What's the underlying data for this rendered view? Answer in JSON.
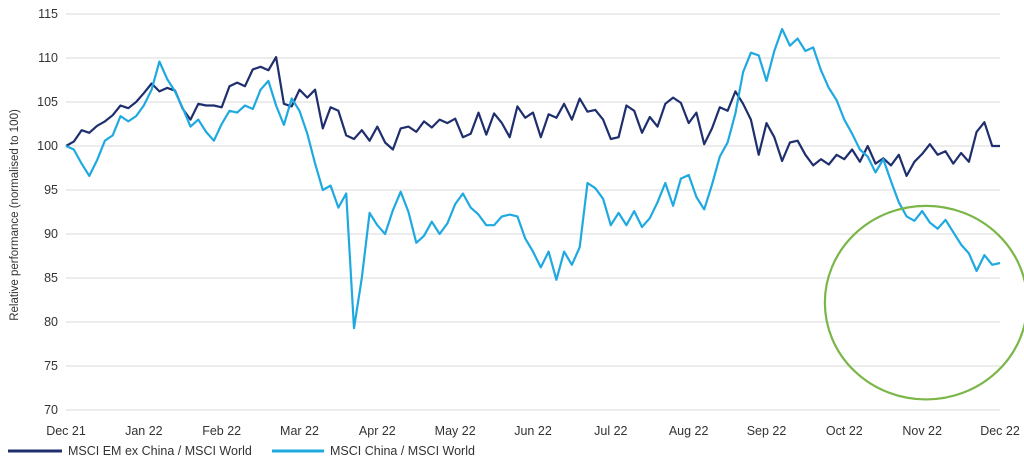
{
  "chart_data": {
    "type": "line",
    "title": "",
    "xlabel": "",
    "ylabel": "Relative performance (normalised to 100)",
    "ylim": [
      70,
      115
    ],
    "yticks": [
      70,
      75,
      80,
      85,
      90,
      95,
      100,
      105,
      110,
      115
    ],
    "xticks": [
      "Dec 21",
      "Jan 22",
      "Feb 22",
      "Mar 22",
      "Apr 22",
      "May 22",
      "Jun 22",
      "Jul 22",
      "Aug 22",
      "Sep 22",
      "Oct 22",
      "Nov 22",
      "Dec 22"
    ],
    "grid": "horizontal",
    "legend_position": "bottom-left",
    "highlight": {
      "shape": "ellipse",
      "color": "#7ab648",
      "month_center": 11.05,
      "value_center": 82.2,
      "month_radius": 1.3,
      "value_radius": 11.0
    },
    "series": [
      {
        "name": "MSCI EM ex China  / MSCI World",
        "color": "#1f2f6e",
        "points": [
          [
            0.0,
            100.0
          ],
          [
            0.1,
            100.5
          ],
          [
            0.2,
            101.8
          ],
          [
            0.3,
            101.5
          ],
          [
            0.4,
            102.3
          ],
          [
            0.5,
            102.8
          ],
          [
            0.6,
            103.5
          ],
          [
            0.7,
            104.6
          ],
          [
            0.8,
            104.3
          ],
          [
            0.9,
            105.0
          ],
          [
            1.0,
            106.0
          ],
          [
            1.1,
            107.1
          ],
          [
            1.2,
            106.2
          ],
          [
            1.3,
            106.6
          ],
          [
            1.4,
            106.3
          ],
          [
            1.5,
            104.2
          ],
          [
            1.6,
            103.0
          ],
          [
            1.7,
            104.8
          ],
          [
            1.8,
            104.6
          ],
          [
            1.9,
            104.6
          ],
          [
            2.0,
            104.4
          ],
          [
            2.1,
            106.8
          ],
          [
            2.2,
            107.2
          ],
          [
            2.3,
            106.8
          ],
          [
            2.4,
            108.7
          ],
          [
            2.5,
            109.0
          ],
          [
            2.6,
            108.6
          ],
          [
            2.7,
            110.1
          ],
          [
            2.8,
            104.8
          ],
          [
            2.9,
            104.5
          ],
          [
            3.0,
            106.4
          ],
          [
            3.1,
            105.5
          ],
          [
            3.2,
            106.4
          ],
          [
            3.3,
            102.0
          ],
          [
            3.4,
            104.4
          ],
          [
            3.5,
            104.0
          ],
          [
            3.6,
            101.2
          ],
          [
            3.7,
            100.8
          ],
          [
            3.8,
            101.8
          ],
          [
            3.9,
            100.6
          ],
          [
            4.0,
            102.2
          ],
          [
            4.1,
            100.4
          ],
          [
            4.2,
            99.6
          ],
          [
            4.3,
            102.0
          ],
          [
            4.4,
            102.2
          ],
          [
            4.5,
            101.6
          ],
          [
            4.6,
            102.8
          ],
          [
            4.7,
            102.1
          ],
          [
            4.8,
            103.0
          ],
          [
            4.9,
            102.6
          ],
          [
            5.0,
            103.1
          ],
          [
            5.1,
            101.0
          ],
          [
            5.2,
            101.4
          ],
          [
            5.3,
            103.8
          ],
          [
            5.4,
            101.3
          ],
          [
            5.5,
            103.7
          ],
          [
            5.6,
            102.6
          ],
          [
            5.7,
            101.0
          ],
          [
            5.8,
            104.5
          ],
          [
            5.9,
            103.2
          ],
          [
            6.0,
            103.8
          ],
          [
            6.1,
            101.0
          ],
          [
            6.2,
            103.6
          ],
          [
            6.3,
            103.2
          ],
          [
            6.4,
            104.8
          ],
          [
            6.5,
            103.0
          ],
          [
            6.6,
            105.4
          ],
          [
            6.7,
            103.9
          ],
          [
            6.8,
            104.1
          ],
          [
            6.9,
            103.0
          ],
          [
            7.0,
            100.8
          ],
          [
            7.1,
            101.0
          ],
          [
            7.2,
            104.6
          ],
          [
            7.3,
            104.0
          ],
          [
            7.4,
            101.5
          ],
          [
            7.5,
            103.3
          ],
          [
            7.6,
            102.2
          ],
          [
            7.7,
            104.8
          ],
          [
            7.8,
            105.5
          ],
          [
            7.9,
            104.9
          ],
          [
            8.0,
            102.6
          ],
          [
            8.1,
            103.8
          ],
          [
            8.2,
            100.2
          ],
          [
            8.3,
            102.0
          ],
          [
            8.4,
            104.4
          ],
          [
            8.5,
            104.0
          ],
          [
            8.6,
            106.2
          ],
          [
            8.7,
            104.8
          ],
          [
            8.8,
            103.0
          ],
          [
            8.9,
            99.0
          ],
          [
            9.0,
            102.6
          ],
          [
            9.1,
            101.0
          ],
          [
            9.2,
            98.3
          ],
          [
            9.3,
            100.4
          ],
          [
            9.4,
            100.6
          ],
          [
            9.5,
            99.0
          ],
          [
            9.6,
            97.8
          ],
          [
            9.7,
            98.5
          ],
          [
            9.8,
            97.9
          ],
          [
            9.9,
            99.0
          ],
          [
            10.0,
            98.5
          ],
          [
            10.1,
            99.6
          ],
          [
            10.2,
            98.2
          ],
          [
            10.3,
            100.0
          ],
          [
            10.4,
            98.0
          ],
          [
            10.5,
            98.6
          ],
          [
            10.6,
            97.8
          ],
          [
            10.7,
            99.0
          ],
          [
            10.8,
            96.6
          ],
          [
            10.9,
            98.2
          ],
          [
            11.0,
            99.1
          ],
          [
            11.1,
            100.2
          ],
          [
            11.2,
            99.0
          ],
          [
            11.3,
            99.4
          ],
          [
            11.4,
            98.0
          ],
          [
            11.5,
            99.2
          ],
          [
            11.6,
            98.2
          ],
          [
            11.7,
            101.6
          ],
          [
            11.8,
            102.7
          ],
          [
            11.9,
            100.0
          ],
          [
            12.0,
            100.0
          ]
        ]
      },
      {
        "name": "MSCI China / MSCI World",
        "color": "#1fa9e1",
        "points": [
          [
            0.0,
            100.0
          ],
          [
            0.1,
            99.6
          ],
          [
            0.2,
            98.0
          ],
          [
            0.3,
            96.6
          ],
          [
            0.4,
            98.4
          ],
          [
            0.5,
            100.6
          ],
          [
            0.6,
            101.2
          ],
          [
            0.7,
            103.4
          ],
          [
            0.8,
            102.8
          ],
          [
            0.9,
            103.4
          ],
          [
            1.0,
            104.6
          ],
          [
            1.1,
            106.4
          ],
          [
            1.2,
            109.6
          ],
          [
            1.3,
            107.6
          ],
          [
            1.4,
            106.2
          ],
          [
            1.5,
            104.3
          ],
          [
            1.6,
            102.2
          ],
          [
            1.7,
            103.0
          ],
          [
            1.8,
            101.6
          ],
          [
            1.9,
            100.6
          ],
          [
            2.0,
            102.5
          ],
          [
            2.1,
            104.0
          ],
          [
            2.2,
            103.8
          ],
          [
            2.3,
            104.6
          ],
          [
            2.4,
            104.2
          ],
          [
            2.5,
            106.4
          ],
          [
            2.6,
            107.4
          ],
          [
            2.7,
            104.6
          ],
          [
            2.8,
            102.4
          ],
          [
            2.9,
            105.4
          ],
          [
            3.0,
            104.0
          ],
          [
            3.1,
            101.4
          ],
          [
            3.2,
            98.0
          ],
          [
            3.3,
            95.0
          ],
          [
            3.4,
            95.5
          ],
          [
            3.5,
            93.0
          ],
          [
            3.6,
            94.6
          ],
          [
            3.7,
            79.3
          ],
          [
            3.8,
            85.0
          ],
          [
            3.9,
            92.4
          ],
          [
            4.0,
            91.0
          ],
          [
            4.1,
            90.0
          ],
          [
            4.2,
            92.7
          ],
          [
            4.3,
            94.8
          ],
          [
            4.4,
            92.5
          ],
          [
            4.5,
            89.0
          ],
          [
            4.6,
            89.8
          ],
          [
            4.7,
            91.4
          ],
          [
            4.8,
            90.0
          ],
          [
            4.9,
            91.2
          ],
          [
            5.0,
            93.4
          ],
          [
            5.1,
            94.6
          ],
          [
            5.2,
            93.0
          ],
          [
            5.3,
            92.2
          ],
          [
            5.4,
            91.0
          ],
          [
            5.5,
            91.0
          ],
          [
            5.6,
            92.0
          ],
          [
            5.7,
            92.2
          ],
          [
            5.8,
            92.0
          ],
          [
            5.9,
            89.5
          ],
          [
            6.0,
            88.0
          ],
          [
            6.1,
            86.2
          ],
          [
            6.2,
            88.0
          ],
          [
            6.3,
            84.8
          ],
          [
            6.4,
            88.0
          ],
          [
            6.5,
            86.5
          ],
          [
            6.6,
            88.5
          ],
          [
            6.7,
            95.8
          ],
          [
            6.8,
            95.2
          ],
          [
            6.9,
            94.0
          ],
          [
            7.0,
            91.0
          ],
          [
            7.1,
            92.4
          ],
          [
            7.2,
            91.0
          ],
          [
            7.3,
            92.6
          ],
          [
            7.4,
            90.8
          ],
          [
            7.5,
            91.8
          ],
          [
            7.6,
            93.6
          ],
          [
            7.7,
            95.8
          ],
          [
            7.8,
            93.2
          ],
          [
            7.9,
            96.3
          ],
          [
            8.0,
            96.7
          ],
          [
            8.1,
            94.2
          ],
          [
            8.2,
            92.8
          ],
          [
            8.3,
            95.6
          ],
          [
            8.4,
            98.8
          ],
          [
            8.5,
            100.4
          ],
          [
            8.6,
            103.7
          ],
          [
            8.7,
            108.4
          ],
          [
            8.8,
            110.6
          ],
          [
            8.9,
            110.3
          ],
          [
            9.0,
            107.4
          ],
          [
            9.1,
            110.8
          ],
          [
            9.2,
            113.3
          ],
          [
            9.3,
            111.4
          ],
          [
            9.4,
            112.2
          ],
          [
            9.5,
            110.8
          ],
          [
            9.6,
            111.2
          ],
          [
            9.7,
            108.6
          ],
          [
            9.8,
            106.6
          ],
          [
            9.9,
            105.2
          ],
          [
            10.0,
            103.0
          ],
          [
            10.1,
            101.4
          ],
          [
            10.2,
            99.6
          ],
          [
            10.3,
            98.8
          ],
          [
            10.4,
            97.0
          ],
          [
            10.5,
            98.5
          ],
          [
            10.6,
            96.0
          ],
          [
            10.7,
            93.6
          ],
          [
            10.8,
            92.0
          ],
          [
            10.9,
            91.5
          ],
          [
            11.0,
            92.6
          ],
          [
            11.1,
            91.3
          ],
          [
            11.2,
            90.6
          ],
          [
            11.3,
            91.6
          ],
          [
            11.4,
            90.2
          ],
          [
            11.5,
            88.8
          ],
          [
            11.6,
            87.8
          ],
          [
            11.7,
            85.8
          ],
          [
            11.8,
            87.6
          ],
          [
            11.9,
            86.5
          ],
          [
            12.0,
            86.7
          ]
        ]
      }
    ]
  }
}
